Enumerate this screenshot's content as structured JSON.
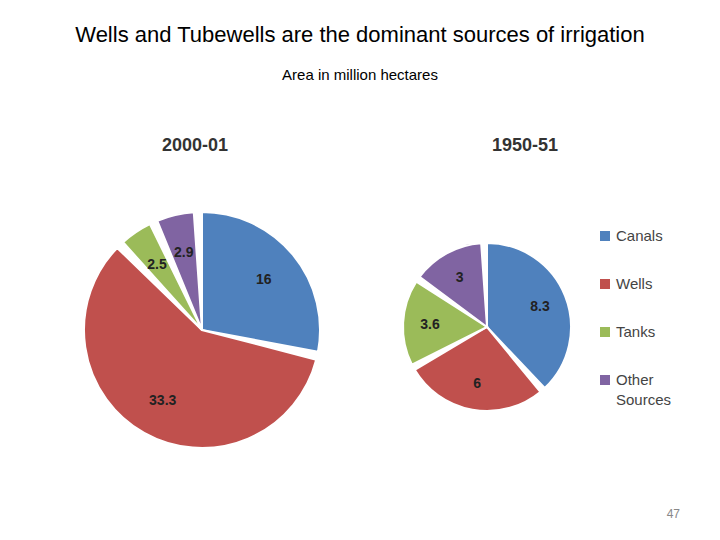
{
  "title": "Wells and Tubewells are the dominant sources of irrigation",
  "subtitle": "Area in million hectares",
  "page_number": 47,
  "chart_data": [
    {
      "type": "pie",
      "title": "2000-01",
      "categories": [
        "Canals",
        "Wells",
        "Tanks",
        "Other Sources"
      ],
      "values": [
        16,
        33.3,
        2.5,
        2.9
      ],
      "colors": [
        "#4f81bd",
        "#c0504d",
        "#9bbb59",
        "#8064a2"
      ],
      "data_labels": true
    },
    {
      "type": "pie",
      "title": "1950-51",
      "categories": [
        "Canals",
        "Wells",
        "Tanks",
        "Other Sources"
      ],
      "values": [
        8.3,
        6,
        3.6,
        3
      ],
      "colors": [
        "#4f81bd",
        "#c0504d",
        "#9bbb59",
        "#8064a2"
      ],
      "data_labels": true,
      "legend": "right"
    }
  ]
}
